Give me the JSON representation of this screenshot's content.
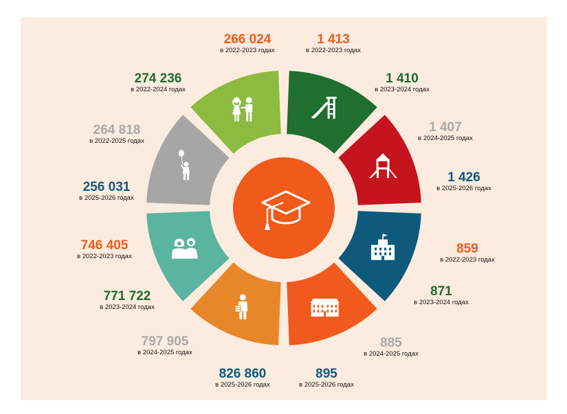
{
  "colors": {
    "panel_bg": "#fcecdf",
    "center_circle": "#f05a1a",
    "label_orange": "#f05a1a",
    "label_green": "#1d6b2e",
    "label_grey": "#a8a8a8",
    "label_blue": "#0e5a7c"
  },
  "center": {
    "icon": "graduation-cap-icon"
  },
  "segments": [
    {
      "id": "green-right",
      "color": "#1f6f30",
      "icon": "slide-icon"
    },
    {
      "id": "red",
      "color": "#c5141d",
      "icon": "playground-icon"
    },
    {
      "id": "blue",
      "color": "#0d5a7c",
      "icon": "school-icon"
    },
    {
      "id": "orange-right",
      "color": "#f25a1d",
      "icon": "college-building-icon"
    },
    {
      "id": "orange-left",
      "color": "#e8872a",
      "icon": "student-with-books-icon"
    },
    {
      "id": "teal",
      "color": "#5ab4a0",
      "icon": "teenagers-icon"
    },
    {
      "id": "grey",
      "color": "#a6a6a6",
      "icon": "child-with-balloon-icon"
    },
    {
      "id": "lime",
      "color": "#8cbb3f",
      "icon": "two-children-icon"
    }
  ],
  "labels": [
    {
      "value": "266 024",
      "caption": "в 2022-2023 годах",
      "color": "#f05a1a"
    },
    {
      "value": "1 413",
      "caption": "в 2022-2023 годах",
      "color": "#f05a1a"
    },
    {
      "value": "274 236",
      "caption": "в 2022-2024 годах",
      "color": "#1d6b2e"
    },
    {
      "value": "1 410",
      "caption": "в 2023-2024 годах",
      "color": "#1d6b2e"
    },
    {
      "value": "264 818",
      "caption": "в 2022-2025 годах",
      "color": "#a8a8a8"
    },
    {
      "value": "1 407",
      "caption": "в 2024-2025 годах",
      "color": "#a8a8a8"
    },
    {
      "value": "256 031",
      "caption": "в 2025-2026 годах",
      "color": "#0e5a7c"
    },
    {
      "value": "1 426",
      "caption": "в 2025-2026 годах",
      "color": "#0e5a7c"
    },
    {
      "value": "746 405",
      "caption": "в 2022-2023 годах",
      "color": "#f05a1a"
    },
    {
      "value": "859",
      "caption": "в 2022-2023 годах",
      "color": "#f05a1a"
    },
    {
      "value": "771 722",
      "caption": "в 2023-2024 годах",
      "color": "#1d6b2e"
    },
    {
      "value": "871",
      "caption": "в 2023-2024 годах",
      "color": "#1d6b2e"
    },
    {
      "value": "797 905",
      "caption": "в 2024-2025 годах",
      "color": "#a8a8a8"
    },
    {
      "value": "885",
      "caption": "в 2024-2025 годах",
      "color": "#a8a8a8"
    },
    {
      "value": "826 860",
      "caption": "в 2025-2026 годах",
      "color": "#0e5a7c"
    },
    {
      "value": "895",
      "caption": "в 2025-2026 годах",
      "color": "#0e5a7c"
    }
  ]
}
